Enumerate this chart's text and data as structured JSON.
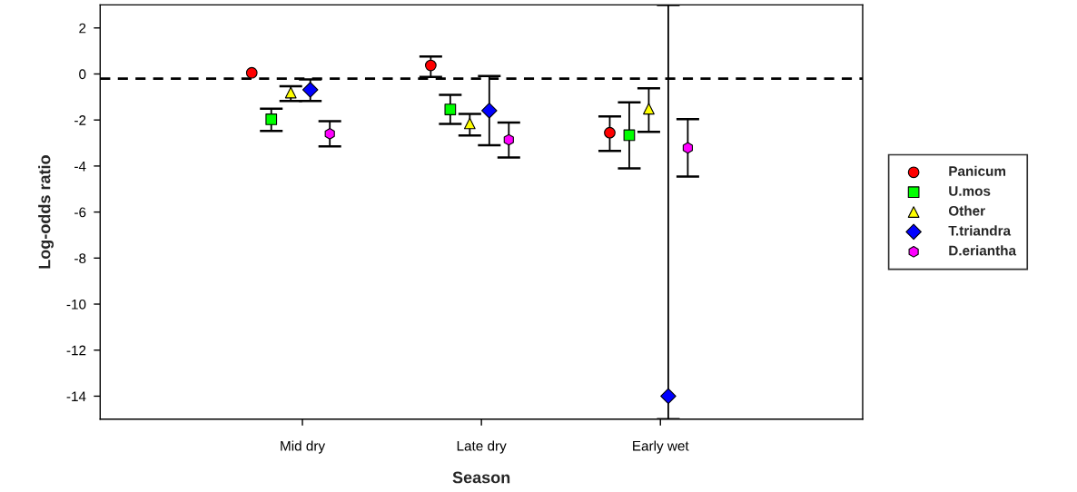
{
  "chart_data": {
    "type": "scatter",
    "xlabel": "Season",
    "ylabel": "Log-odds ratio",
    "categories": [
      "Mid dry",
      "Late dry",
      "Early wet"
    ],
    "ylim": [
      -15,
      3
    ],
    "yticks": [
      -14,
      -12,
      -10,
      -8,
      -6,
      -4,
      -2,
      0,
      2
    ],
    "series": [
      {
        "name": "Panicum",
        "color": "#ff0000",
        "marker": "circle",
        "values": [
          0.05,
          0.37,
          -2.55
        ],
        "errors": [
          null,
          [
            -0.13,
            0.76
          ],
          [
            -3.34,
            -1.84
          ]
        ]
      },
      {
        "name": "U.mos",
        "color": "#00ff00",
        "marker": "square",
        "values": [
          -1.97,
          -1.54,
          -2.66
        ],
        "errors": [
          [
            -2.48,
            -1.51
          ],
          [
            -2.17,
            -0.91
          ],
          [
            -4.1,
            -1.23
          ]
        ]
      },
      {
        "name": "Other",
        "color": "#ffff00",
        "marker": "triangle",
        "values": [
          -0.81,
          -2.15,
          -1.51
        ],
        "errors": [
          [
            -1.17,
            -0.53
          ],
          [
            -2.67,
            -1.74
          ],
          [
            -2.52,
            -0.62
          ]
        ]
      },
      {
        "name": "T.triandra",
        "color": "#0000ff",
        "marker": "diamond",
        "values": [
          -0.69,
          -1.59,
          -14
        ],
        "errors": [
          [
            -1.17,
            -0.24
          ],
          [
            -3.1,
            -0.09
          ],
          [
            -15,
            3
          ]
        ]
      },
      {
        "name": "D.eriantha",
        "color": "#ff00ff",
        "values": [
          -2.6,
          -2.86,
          -3.21
        ],
        "errors": [
          [
            -3.15,
            -2.05
          ],
          [
            -3.63,
            -2.11
          ],
          [
            -4.46,
            -1.96
          ]
        ]
      }
    ],
    "ref_lines": [
      {
        "axis": "y",
        "value": -0.2,
        "color": "#000000",
        "line_style": "dashed"
      }
    ],
    "grid": false,
    "legend": "right"
  }
}
